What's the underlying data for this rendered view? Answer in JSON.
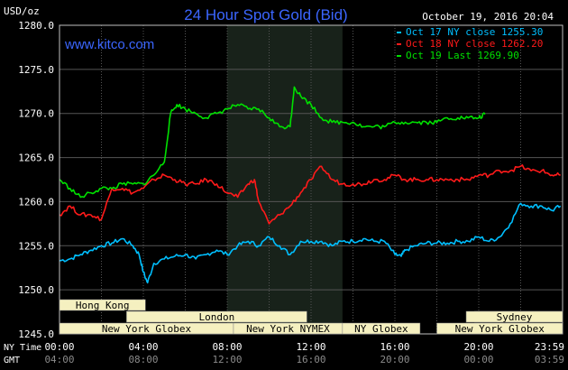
{
  "chart_data": {
    "type": "line",
    "title": "24 Hour Spot Gold (Bid)",
    "ylabel": "USD/oz",
    "watermark": "www.kitco.com",
    "timestamp": "October 19, 2016 20:04",
    "ylim": [
      1245,
      1280
    ],
    "yticks": [
      "1280.0",
      "1275.0",
      "1270.0",
      "1265.0",
      "1260.0",
      "1255.0",
      "1250.0",
      "1245.0"
    ],
    "xlim": [
      0,
      24
    ],
    "ny_time_label": "NY Time",
    "gmt_label": "GMT",
    "ny_time_ticks": [
      "00:00",
      "04:00",
      "08:00",
      "12:00",
      "16:00",
      "20:00",
      "23:59"
    ],
    "gmt_ticks": [
      "04:00",
      "08:00",
      "12:00",
      "16:00",
      "20:00",
      "00:00",
      "03:59"
    ],
    "grid": true,
    "legend_position": "top-right",
    "highlight_band": [
      8,
      13.5
    ],
    "series": [
      {
        "name": "Oct 17 NY close 1255.30",
        "color": "#00bfff",
        "x": [
          0,
          0.5,
          1,
          1.5,
          2,
          2.5,
          3,
          3.5,
          3.8,
          4,
          4.2,
          4.5,
          5,
          5.5,
          6,
          6.5,
          7,
          7.5,
          8,
          8.5,
          9,
          9.5,
          10,
          10.5,
          11,
          11.5,
          12,
          12.5,
          13,
          13.5,
          14,
          14.5,
          15,
          15.5,
          16,
          16.3,
          16.5,
          17,
          17.5,
          18,
          18.5,
          19,
          19.5,
          20,
          20.5,
          21,
          21.5,
          22,
          22.5,
          23,
          23.5,
          23.9
        ],
        "y": [
          1253.3,
          1253.5,
          1254.0,
          1254.5,
          1255.0,
          1255.3,
          1255.8,
          1255.0,
          1254.0,
          1252.0,
          1250.8,
          1253.0,
          1253.5,
          1253.8,
          1254.0,
          1253.5,
          1254.0,
          1254.5,
          1254.0,
          1255.0,
          1255.5,
          1255.0,
          1256.0,
          1255.0,
          1254.0,
          1255.5,
          1255.5,
          1255.5,
          1255.0,
          1255.5,
          1255.5,
          1255.8,
          1255.5,
          1255.5,
          1254.0,
          1253.8,
          1254.5,
          1255.0,
          1255.3,
          1255.3,
          1255.3,
          1255.5,
          1255.5,
          1256.0,
          1255.5,
          1256.0,
          1257.5,
          1259.8,
          1259.5,
          1259.5,
          1259.0,
          1259.5
        ]
      },
      {
        "name": "Oct 18 NY close 1262.20",
        "color": "#ff1a1a",
        "x": [
          0,
          0.5,
          1,
          1.5,
          2,
          2.5,
          3,
          3.5,
          4,
          4.5,
          5,
          5.5,
          6,
          6.5,
          7,
          7.5,
          8,
          8.5,
          9,
          9.3,
          9.5,
          10,
          10.5,
          11,
          11.5,
          12,
          12.5,
          13,
          13.5,
          14,
          14.5,
          15,
          15.5,
          16,
          16.5,
          17,
          17.5,
          18,
          18.5,
          19,
          19.5,
          20,
          20.5,
          21,
          21.5,
          22,
          22.5,
          23,
          23.5,
          23.9
        ],
        "y": [
          1258.5,
          1259.5,
          1258.5,
          1258.5,
          1258.0,
          1261.5,
          1261.5,
          1261.0,
          1261.5,
          1262.5,
          1263.0,
          1262.5,
          1262.0,
          1262.0,
          1262.5,
          1262.0,
          1261.0,
          1260.5,
          1262.0,
          1262.5,
          1260.0,
          1257.5,
          1258.5,
          1259.5,
          1261.0,
          1262.5,
          1264.0,
          1262.5,
          1262.0,
          1262.0,
          1262.0,
          1262.5,
          1262.5,
          1263.0,
          1262.5,
          1262.5,
          1262.5,
          1262.5,
          1262.5,
          1262.5,
          1262.5,
          1263.0,
          1263.0,
          1263.5,
          1263.5,
          1264.0,
          1263.5,
          1263.5,
          1263.0,
          1263.0
        ]
      },
      {
        "name": "Oct 19 Last 1269.90",
        "color": "#00e000",
        "x": [
          0,
          0.5,
          1,
          1.5,
          2,
          2.5,
          3,
          3.5,
          4,
          4.5,
          5,
          5.3,
          5.6,
          6,
          6.5,
          7,
          7.5,
          8,
          8.5,
          9,
          9.5,
          10,
          10.5,
          11,
          11.2,
          11.5,
          12,
          12.5,
          13,
          13.5,
          14,
          14.5,
          15,
          15.5,
          16,
          16.5,
          17,
          17.5,
          18,
          18.5,
          19,
          19.5,
          20,
          20.3
        ],
        "y": [
          1262.5,
          1261.5,
          1260.5,
          1261.0,
          1261.5,
          1261.5,
          1262.0,
          1262.0,
          1262.0,
          1263.0,
          1264.5,
          1270.0,
          1271.0,
          1270.5,
          1270.0,
          1269.5,
          1270.0,
          1270.5,
          1271.0,
          1270.5,
          1270.5,
          1269.5,
          1268.5,
          1268.5,
          1273.0,
          1272.0,
          1271.0,
          1269.5,
          1269.0,
          1269.0,
          1269.0,
          1268.5,
          1268.5,
          1268.5,
          1269.0,
          1269.0,
          1269.0,
          1269.0,
          1269.0,
          1269.5,
          1269.5,
          1269.5,
          1269.5,
          1269.9
        ]
      }
    ]
  },
  "sessions": [
    {
      "label": "Hong Kong",
      "start": 0,
      "end": 4.1
    },
    {
      "label": "Hong Kong",
      "start": 19.8,
      "end": 24
    },
    {
      "label": "London",
      "start": 3.2,
      "end": 11.8
    },
    {
      "label": "Sydney",
      "start": 19.4,
      "end": 24
    },
    {
      "label": "New York Globex",
      "start": 0,
      "end": 8.3
    },
    {
      "label": "New York NYMEX",
      "start": 8.3,
      "end": 13.5
    },
    {
      "label": "NY Globex",
      "start": 13.5,
      "end": 17.2
    },
    {
      "label": "New York Globex",
      "start": 18,
      "end": 24
    }
  ],
  "colors": {
    "background": "#000000",
    "plot_border": "#c0c0c0",
    "grid": "#555555",
    "band": "#18221a",
    "title": "#3b66ff",
    "watermark": "#3b66ff",
    "axis_text": "#ffffff",
    "session_fill": "#f5f0c0",
    "session_text": "#000000"
  }
}
